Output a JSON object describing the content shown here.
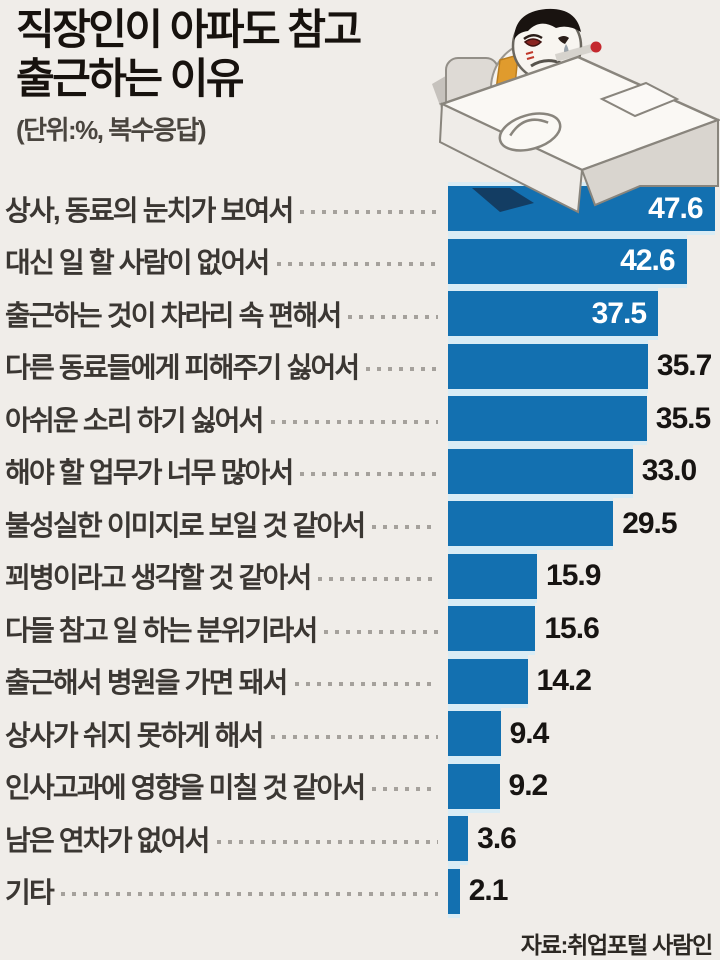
{
  "page": {
    "background": "#f0ede9"
  },
  "header": {
    "title_line1": "직장인이 아파도 참고",
    "title_line2": "출근하는 이유",
    "unit_note": "(단위:%, 복수응답)"
  },
  "illustration": {
    "name": "sick-office-worker-slumped-at-desk"
  },
  "chart_data": {
    "type": "bar",
    "orientation": "horizontal",
    "title": "직장인이 아파도 참고 출근하는 이유",
    "subtitle": "(단위:%, 복수응답)",
    "unit": "%",
    "xlim": [
      0,
      48.6
    ],
    "grid": false,
    "legend": "none",
    "bar_color": "#1370b0",
    "categories": [
      "상사, 동료의 눈치가 보여서",
      "대신 일 할 사람이 없어서",
      "출근하는 것이 차라리 속 편해서",
      "다른 동료들에게 피해주기 싫어서",
      "아쉬운 소리 하기 싫어서",
      "해야 할 업무가 너무 많아서",
      "불성실한 이미지로 보일 것 같아서",
      "꾀병이라고 생각할 것 같아서",
      "다들 참고 일 하는 분위기라서",
      "출근해서 병원을 가면 돼서",
      "상사가 쉬지 못하게 해서",
      "인사고과에 영향을 미칠 것 같아서",
      "남은 연차가 없어서",
      "기타"
    ],
    "values": [
      47.6,
      42.6,
      37.5,
      35.7,
      35.5,
      33.0,
      29.5,
      15.9,
      15.6,
      14.2,
      9.4,
      9.2,
      3.6,
      2.1
    ],
    "display_values": [
      "47.6",
      "42.6",
      "37.5",
      "35.7",
      "35.5",
      "33.0",
      "29.5",
      "15.9",
      "15.6",
      "14.2",
      "9.4",
      "9.2",
      "3.6",
      "2.1"
    ],
    "value_label_position": [
      "inside",
      "inside",
      "inside",
      "outside",
      "outside",
      "outside",
      "outside",
      "outside",
      "outside",
      "outside",
      "outside",
      "outside",
      "outside",
      "outside"
    ],
    "source": "자료:취업포털 사람인"
  },
  "footer": {
    "source": "자료:취업포털 사람인"
  }
}
